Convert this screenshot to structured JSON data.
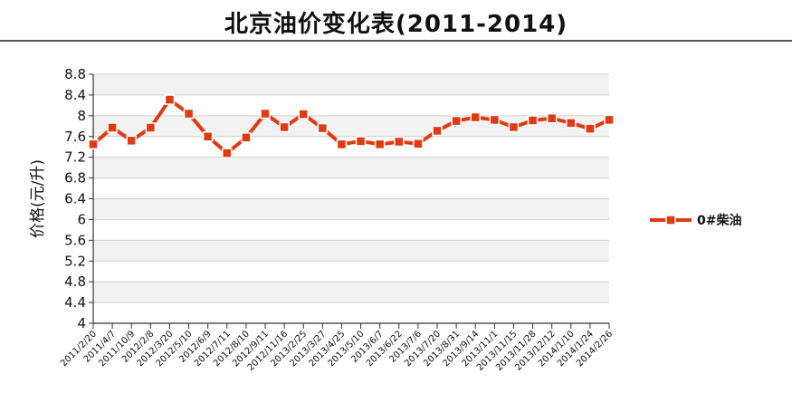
{
  "chart_data": {
    "type": "line",
    "title": "北京油价变化表(2011-2014)",
    "ylabel": "价格(元/升)",
    "xlabel": "",
    "ylim": [
      4,
      8.8
    ],
    "yticks": [
      4,
      4.4,
      4.8,
      5.2,
      5.6,
      6,
      6.4,
      6.8,
      7.2,
      7.6,
      8,
      8.4,
      8.8
    ],
    "grid": true,
    "legend_position": "right",
    "line_color": "#e03a12",
    "marker_color": "#e03a12",
    "categories": [
      "2011/2/20",
      "2011/4/7",
      "2011/10/9",
      "2012/2/8",
      "2012/3/20",
      "2012/5/10",
      "2012/6/9",
      "2012/7/11",
      "2012/8/10",
      "2012/9/11",
      "2012/11/16",
      "2013/2/25",
      "2013/3/27",
      "2013/4/25",
      "2013/5/10",
      "2013/6/7",
      "2013/6/22",
      "2013/7/6",
      "2013/7/20",
      "2013/8/31",
      "2013/9/14",
      "2013/11/1",
      "2013/11/15",
      "2013/11/28",
      "2013/12/12",
      "2014/1/10",
      "2014/1/24",
      "2014/2/26"
    ],
    "series": [
      {
        "name": "0#柴油",
        "values": [
          7.45,
          7.77,
          7.52,
          7.77,
          8.31,
          8.04,
          7.6,
          7.28,
          7.58,
          8.04,
          7.78,
          8.03,
          7.76,
          7.45,
          7.51,
          7.45,
          7.5,
          7.46,
          7.71,
          7.9,
          7.97,
          7.92,
          7.78,
          7.91,
          7.95,
          7.86,
          7.75,
          7.92
        ]
      }
    ]
  }
}
